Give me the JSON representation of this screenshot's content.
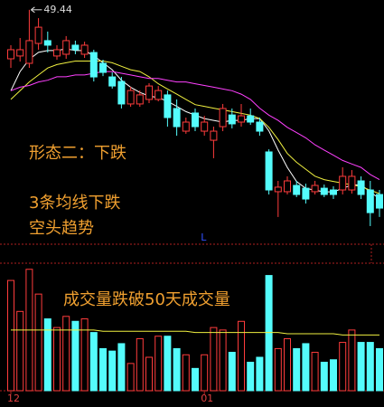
{
  "chart_data": {
    "type": "candlestick",
    "categories": [
      "12",
      null,
      null,
      null,
      null,
      null,
      null,
      null,
      null,
      null,
      null,
      null,
      null,
      null,
      null,
      null,
      null,
      null,
      null,
      null,
      null,
      "01",
      null,
      null,
      null,
      null,
      null,
      null,
      null,
      null,
      null,
      null,
      null,
      null,
      null,
      null,
      null,
      null,
      null,
      null,
      null
    ],
    "open": [
      46.63,
      46.79,
      46.37,
      47.51,
      47.67,
      46.79,
      46.89,
      47.41,
      46.89,
      46.99,
      46.37,
      45.59,
      45.33,
      44.04,
      44.04,
      44.3,
      44.3,
      44.56,
      43.78,
      42.48,
      43.52,
      42.48,
      41.96,
      42.74,
      43.41,
      43.0,
      43.36,
      43.0,
      41.29,
      39.01,
      39.01,
      39.37,
      39.21,
      39.01,
      39.21,
      39.11,
      39.11,
      39.11,
      39.63,
      39.11,
      38.85
    ],
    "high": [
      47.41,
      47.82,
      49.44,
      48.96,
      48.19,
      47.41,
      47.93,
      47.67,
      47.61,
      47.15,
      46.58,
      45.85,
      45.59,
      45.02,
      44.81,
      45.23,
      45.07,
      44.81,
      44.3,
      43.26,
      43.78,
      43.36,
      42.74,
      44.04,
      43.78,
      44.04,
      43.78,
      43.26,
      41.44,
      39.63,
      39.89,
      39.63,
      39.47,
      39.63,
      39.42,
      39.32,
      40.41,
      40.25,
      39.89,
      39.63,
      39.11
    ],
    "low": [
      46.11,
      46.47,
      46.11,
      47.15,
      46.99,
      46.58,
      46.63,
      46.89,
      46.68,
      45.33,
      45.64,
      44.92,
      43.78,
      43.88,
      43.88,
      44.09,
      44.19,
      42.74,
      42.22,
      42.33,
      42.48,
      42.22,
      40.93,
      42.48,
      42.64,
      42.74,
      42.84,
      42.22,
      38.85,
      37.56,
      38.85,
      38.7,
      38.33,
      38.85,
      38.7,
      38.59,
      38.85,
      38.9,
      38.59,
      37.04,
      37.56
    ],
    "close": [
      47.15,
      47.15,
      47.67,
      48.44,
      47.41,
      47.15,
      47.67,
      47.15,
      47.41,
      45.59,
      45.85,
      45.07,
      44.04,
      44.81,
      44.56,
      45.07,
      44.81,
      43.26,
      42.74,
      43.0,
      42.74,
      43.0,
      42.48,
      43.78,
      42.9,
      43.36,
      43.0,
      42.48,
      39.11,
      39.27,
      39.63,
      38.85,
      38.59,
      39.37,
      38.85,
      38.85,
      39.89,
      39.89,
      38.85,
      37.81,
      38.07
    ],
    "volume": [
      89,
      64,
      98,
      78,
      58,
      51,
      60,
      56,
      58,
      47,
      34,
      32,
      38,
      22,
      42,
      27,
      44,
      44,
      34,
      29,
      18,
      29,
      51,
      49,
      31,
      56,
      23,
      27,
      93,
      34,
      42,
      34,
      38,
      31,
      23,
      25,
      39,
      49,
      39,
      39,
      34
    ],
    "ylim": [
      36,
      50
    ],
    "volume_ylim": [
      0,
      100
    ],
    "up_color": "#ff3c3c",
    "down_color": "#54fcfc",
    "ma_lines": [
      {
        "color": "#ffffff",
        "values": [
          44.8,
          45.9,
          46.6,
          47.0,
          47.1,
          47.1,
          47.2,
          47.1,
          47.1,
          46.8,
          46.4,
          46.0,
          45.4,
          45.0,
          44.7,
          44.5,
          44.4,
          44.2,
          43.9,
          43.6,
          43.4,
          43.2,
          43.1,
          43.0,
          43.1,
          43.1,
          43.2,
          43.2,
          42.5,
          41.4,
          40.4,
          39.6,
          39.2,
          39.1,
          39.0,
          39.0,
          39.2,
          39.4,
          39.4,
          39.0,
          38.6
        ]
      },
      {
        "color": "#f0f040",
        "values": [
          44.3,
          44.8,
          45.3,
          45.7,
          46.1,
          46.3,
          46.4,
          46.5,
          46.5,
          46.5,
          46.5,
          46.4,
          46.2,
          46.0,
          45.9,
          45.6,
          45.2,
          44.9,
          44.6,
          44.3,
          44.0,
          43.9,
          43.8,
          43.7,
          43.6,
          43.5,
          43.4,
          43.2,
          42.7,
          42.0,
          41.2,
          40.7,
          40.3,
          39.9,
          39.7,
          39.6,
          39.5,
          39.4,
          39.3,
          39.1,
          38.9
        ]
      },
      {
        "color": "#ff40ff",
        "values": [
          44.8,
          45.0,
          45.1,
          45.3,
          45.4,
          45.6,
          45.6,
          45.7,
          45.7,
          45.8,
          45.9,
          45.9,
          45.8,
          45.7,
          45.6,
          45.5,
          45.5,
          45.4,
          45.3,
          45.3,
          45.2,
          45.1,
          45.0,
          44.9,
          44.8,
          44.6,
          44.3,
          43.8,
          43.4,
          43.1,
          42.7,
          42.4,
          42.1,
          41.7,
          41.4,
          41.1,
          40.8,
          40.6,
          40.4,
          40.0,
          39.7
        ]
      }
    ],
    "volume_ma": {
      "color": "#f0f040",
      "values": [
        49,
        49,
        49,
        49,
        49,
        49,
        49,
        49,
        49,
        49,
        48,
        48,
        48,
        48,
        48,
        48,
        48,
        48,
        48,
        48,
        47,
        47,
        47,
        47,
        47,
        47,
        47,
        47,
        47,
        47,
        46,
        46,
        46,
        46,
        46,
        46,
        45,
        45,
        45,
        45,
        45
      ]
    },
    "annotations": [
      {
        "text": "形态二：下跌",
        "color": "#f0a030"
      },
      {
        "text": "3条均线下跌",
        "color": "#f0a030"
      },
      {
        "text": "空头趋势",
        "color": "#f0a030"
      },
      {
        "text": "成交量跌破50天成交量",
        "color": "#f0a030"
      }
    ],
    "marker": {
      "text": "L",
      "color": "#3050ff"
    }
  }
}
